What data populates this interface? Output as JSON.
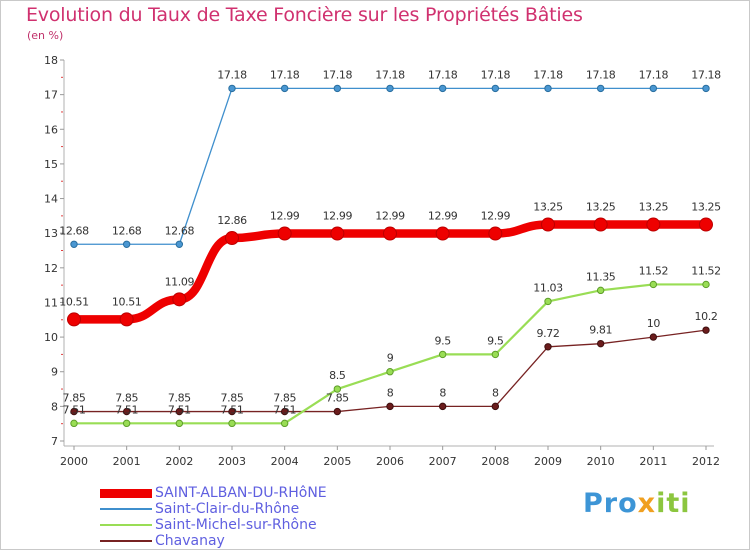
{
  "title": "Evolution du Taux de Taxe Foncière sur les Propriétés Bâties",
  "unit_label": "(en %)",
  "logo": {
    "part1": "Pro",
    "part2": "x",
    "part3": "iti"
  },
  "chart_data": {
    "type": "line",
    "title": "Evolution du Taux de Taxe Foncière sur les Propriétés Bâties",
    "ylabel": "(en %)",
    "xlabel": "",
    "ylim": [
      7,
      18
    ],
    "yticks": [
      7,
      8,
      9,
      10,
      11,
      12,
      13,
      14,
      15,
      16,
      17,
      18
    ],
    "x": [
      "2000",
      "2001",
      "2002",
      "2003",
      "2004",
      "2005",
      "2006",
      "2007",
      "2008",
      "2009",
      "2010",
      "2011",
      "2012"
    ],
    "series": [
      {
        "name": "SAINT-ALBAN-DU-RHôNE",
        "color": "#ee0000",
        "values": [
          10.51,
          10.51,
          11.09,
          12.86,
          12.99,
          12.99,
          12.99,
          12.99,
          12.99,
          13.25,
          13.25,
          13.25,
          13.25
        ],
        "labels": [
          "10.51",
          "10.51",
          "11.09",
          "12.86",
          "12.99",
          "12.99",
          "12.99",
          "12.99",
          "12.99",
          "13.25",
          "13.25",
          "13.25",
          "13.25"
        ]
      },
      {
        "name": "Saint-Clair-du-Rhône",
        "color": "#3f8fcd",
        "values": [
          12.68,
          12.68,
          12.68,
          17.18,
          17.18,
          17.18,
          17.18,
          17.18,
          17.18,
          17.18,
          17.18,
          17.18,
          17.18
        ],
        "labels": [
          "12.68",
          "12.68",
          "12.68",
          "17.18",
          "17.18",
          "17.18",
          "17.18",
          "17.18",
          "17.18",
          "17.18",
          "17.18",
          "17.18",
          "17.18"
        ]
      },
      {
        "name": "Saint-Michel-sur-Rhône",
        "color": "#99dd55",
        "values": [
          7.51,
          7.51,
          7.51,
          7.51,
          7.51,
          8.5,
          9,
          9.5,
          9.5,
          11.03,
          11.35,
          11.52,
          11.52
        ],
        "labels": [
          "7.51",
          "7.51",
          "7.51",
          "7.51",
          "7.51",
          "8.5",
          "9",
          "9.5",
          "9.5",
          "11.03",
          "11.35",
          "11.52",
          "11.52"
        ]
      },
      {
        "name": "Chavanay",
        "color": "#772222",
        "values": [
          7.85,
          7.85,
          7.85,
          7.85,
          7.85,
          7.85,
          8,
          8,
          8,
          9.72,
          9.81,
          10,
          10.2
        ],
        "labels": [
          "7.85",
          "7.85",
          "7.85",
          "7.85",
          "7.85",
          "7.85",
          "8",
          "8",
          "8",
          "9.72",
          "9.81",
          "10",
          "10.2"
        ]
      }
    ]
  }
}
